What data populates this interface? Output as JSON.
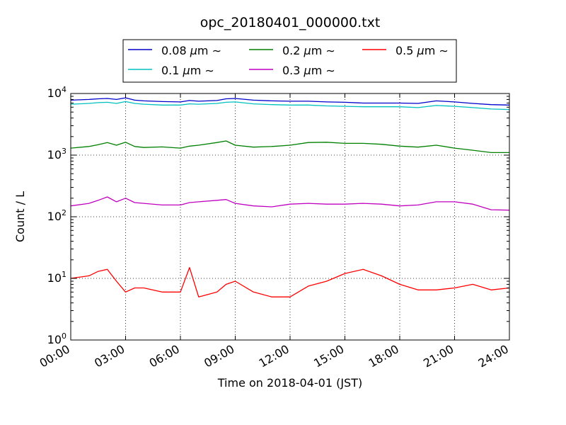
{
  "chart_data": {
    "type": "line",
    "title": "opc_20180401_000000.txt",
    "xlabel": "Time on 2018-04-01 (JST)",
    "ylabel": "Count / L",
    "yscale": "log",
    "ylim": [
      1,
      10000
    ],
    "xlim": [
      "00:00",
      "24:00"
    ],
    "x_ticks": [
      "00:00",
      "03:00",
      "06:00",
      "09:00",
      "12:00",
      "15:00",
      "18:00",
      "21:00",
      "24:00"
    ],
    "y_ticks": [
      {
        "base": "10",
        "exp": "0"
      },
      {
        "base": "10",
        "exp": "1"
      },
      {
        "base": "10",
        "exp": "2"
      },
      {
        "base": "10",
        "exp": "3"
      },
      {
        "base": "10",
        "exp": "4"
      }
    ],
    "grid": true,
    "legend_position": "top-center",
    "legend": [
      {
        "value": "0.08",
        "mu": "μ",
        "unit": "m",
        "tilde": "∼",
        "color": "#0000cc"
      },
      {
        "value": "0.2",
        "mu": "μ",
        "unit": "m",
        "tilde": "∼",
        "color": "#008000"
      },
      {
        "value": "0.5",
        "mu": "μ",
        "unit": "m",
        "tilde": "∼",
        "color": "#ff0000"
      },
      {
        "value": "0.1",
        "mu": "μ",
        "unit": "m",
        "tilde": "∼",
        "color": "#00c0c0"
      },
      {
        "value": "0.3",
        "mu": "μ",
        "unit": "m",
        "tilde": "∼",
        "color": "#c000c0"
      }
    ],
    "x_hours": [
      0,
      1,
      1.5,
      2,
      2.5,
      3,
      3.5,
      4,
      5,
      6,
      6.5,
      7,
      8,
      8.5,
      9,
      10,
      11,
      12,
      13,
      14,
      15,
      16,
      17,
      18,
      19,
      20,
      21,
      22,
      23,
      24
    ],
    "series": [
      {
        "key": "s008",
        "color": "#0000cc",
        "values": [
          7800,
          8000,
          8200,
          8300,
          8000,
          8500,
          7800,
          7600,
          7400,
          7300,
          7700,
          7500,
          7700,
          8200,
          8300,
          7800,
          7600,
          7500,
          7500,
          7300,
          7200,
          7000,
          7000,
          7000,
          6900,
          7600,
          7300,
          6900,
          6600,
          6500
        ]
      },
      {
        "key": "s01",
        "color": "#00c0c0",
        "values": [
          6700,
          6900,
          7100,
          7200,
          6900,
          7400,
          6900,
          6700,
          6500,
          6500,
          6800,
          6700,
          6900,
          7200,
          7300,
          6800,
          6600,
          6500,
          6500,
          6300,
          6200,
          6100,
          6100,
          6100,
          5900,
          6400,
          6200,
          5900,
          5600,
          5500
        ]
      },
      {
        "key": "s02",
        "color": "#008000",
        "values": [
          1300,
          1380,
          1480,
          1600,
          1450,
          1620,
          1380,
          1330,
          1360,
          1300,
          1400,
          1450,
          1600,
          1700,
          1450,
          1350,
          1380,
          1450,
          1600,
          1620,
          1550,
          1550,
          1500,
          1400,
          1350,
          1450,
          1300,
          1200,
          1100,
          1100
        ]
      },
      {
        "key": "s03",
        "color": "#c000c0",
        "values": [
          150,
          165,
          185,
          210,
          175,
          200,
          170,
          165,
          155,
          155,
          170,
          175,
          185,
          190,
          165,
          150,
          145,
          160,
          165,
          160,
          160,
          165,
          160,
          150,
          155,
          175,
          175,
          160,
          130,
          128
        ]
      },
      {
        "key": "s05",
        "color": "#ff0000",
        "values": [
          10,
          11,
          13,
          14,
          9,
          6,
          7,
          7,
          6,
          6,
          15,
          5,
          6,
          8,
          9,
          6,
          5,
          5,
          7.5,
          9,
          12,
          14,
          11,
          8,
          6.5,
          6.5,
          7,
          8,
          6.5,
          7
        ]
      }
    ]
  }
}
